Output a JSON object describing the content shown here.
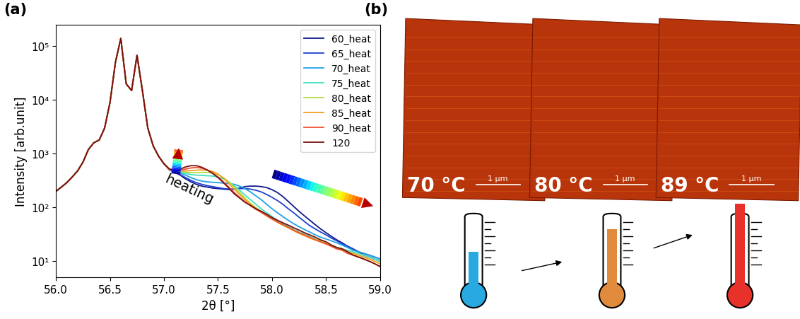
{
  "chart_data": {
    "type": "line",
    "log": "y",
    "grid": false,
    "legend": "upper right",
    "line_style": "solid",
    "xlabel": "2θ [°]",
    "ylabel": "Intensity [arb.unit]",
    "annotations": [
      "heating"
    ],
    "xlim": [
      56.0,
      59.0
    ],
    "xticks": [
      {
        "value": 56.0,
        "label": "56.0"
      },
      {
        "value": 56.5,
        "label": "56.5"
      },
      {
        "value": 57.0,
        "label": "57.0"
      },
      {
        "value": 57.5,
        "label": "57.5"
      },
      {
        "value": 58.0,
        "label": "58.0"
      },
      {
        "value": 58.5,
        "label": "58.5"
      },
      {
        "value": 59.0,
        "label": "59.0"
      }
    ],
    "ylim": [
      5,
      250000
    ],
    "yticks": [
      {
        "value": 10,
        "label": "10¹"
      },
      {
        "value": 100,
        "label": "10²"
      },
      {
        "value": 1000,
        "label": "10³"
      },
      {
        "value": 10000,
        "label": "10⁴"
      },
      {
        "value": 100000,
        "label": "10⁵"
      }
    ],
    "x": [
      56.0,
      56.05,
      56.1,
      56.15,
      56.2,
      56.25,
      56.3,
      56.35,
      56.4,
      56.45,
      56.5,
      56.55,
      56.6,
      56.65,
      56.7,
      56.75,
      56.8,
      56.85,
      56.9,
      56.95,
      57.0,
      57.05,
      57.1,
      57.15,
      57.2,
      57.25,
      57.3,
      57.35,
      57.4,
      57.45,
      57.5,
      57.55,
      57.6,
      57.65,
      57.7,
      57.75,
      57.8,
      57.85,
      57.9,
      57.95,
      58.0,
      58.05,
      58.1,
      58.15,
      58.2,
      58.25,
      58.3,
      58.35,
      58.4,
      58.45,
      58.5,
      58.55,
      58.6,
      58.65,
      58.7,
      58.75,
      58.8,
      58.85,
      58.9,
      58.95,
      59.0
    ],
    "series": [
      {
        "name": "60_heat",
        "color": "#0d1a8c",
        "values": [
          200,
          240,
          290,
          370,
          480,
          700,
          1200,
          1600,
          1800,
          3000,
          9000,
          50000,
          140000,
          20000,
          15000,
          68000,
          15000,
          3000,
          1400,
          900,
          650,
          500,
          450,
          400,
          340,
          300,
          270,
          250,
          240,
          230,
          225,
          220,
          215,
          220,
          230,
          245,
          250,
          250,
          245,
          235,
          215,
          190,
          160,
          130,
          105,
          85,
          70,
          58,
          48,
          40,
          34,
          29,
          25,
          22,
          19,
          17,
          15,
          13,
          12,
          11,
          10
        ]
      },
      {
        "name": "65_heat",
        "color": "#2040d0",
        "values": [
          200,
          240,
          290,
          370,
          480,
          700,
          1200,
          1600,
          1800,
          3000,
          9000,
          50000,
          140000,
          20000,
          15000,
          68000,
          15000,
          3000,
          1400,
          900,
          650,
          500,
          460,
          410,
          360,
          320,
          290,
          270,
          255,
          245,
          235,
          225,
          220,
          220,
          225,
          225,
          220,
          210,
          195,
          175,
          155,
          135,
          115,
          95,
          80,
          66,
          55,
          46,
          40,
          35,
          31,
          27,
          24,
          21,
          19,
          17,
          15,
          14,
          13,
          12,
          11
        ]
      },
      {
        "name": "70_heat",
        "color": "#20a0e8",
        "values": [
          200,
          240,
          290,
          370,
          480,
          700,
          1200,
          1600,
          1800,
          3000,
          9000,
          50000,
          140000,
          20000,
          15000,
          68000,
          15000,
          3000,
          1400,
          900,
          650,
          510,
          480,
          440,
          400,
          360,
          330,
          310,
          300,
          295,
          290,
          285,
          280,
          270,
          250,
          225,
          195,
          165,
          140,
          115,
          95,
          80,
          68,
          58,
          50,
          44,
          39,
          35,
          31,
          28,
          26,
          24,
          22,
          20,
          18,
          16,
          15,
          14,
          13,
          12,
          11
        ]
      },
      {
        "name": "75_heat",
        "color": "#40e0c0",
        "values": [
          200,
          240,
          290,
          370,
          480,
          700,
          1200,
          1600,
          1800,
          3000,
          9000,
          50000,
          140000,
          20000,
          15000,
          68000,
          15000,
          3000,
          1400,
          900,
          650,
          510,
          490,
          460,
          430,
          410,
          400,
          395,
          390,
          385,
          370,
          340,
          300,
          255,
          210,
          170,
          140,
          115,
          95,
          80,
          68,
          58,
          50,
          44,
          39,
          35,
          32,
          29,
          26,
          24,
          22,
          20,
          18,
          17,
          16,
          15,
          14,
          13,
          12,
          11,
          10
        ]
      },
      {
        "name": "80_heat",
        "color": "#b0e040",
        "values": [
          200,
          240,
          290,
          370,
          480,
          700,
          1200,
          1600,
          1800,
          3000,
          9000,
          50000,
          140000,
          20000,
          15000,
          68000,
          15000,
          3000,
          1400,
          900,
          650,
          510,
          490,
          470,
          455,
          445,
          445,
          450,
          450,
          440,
          410,
          360,
          300,
          240,
          190,
          150,
          120,
          100,
          85,
          72,
          62,
          54,
          47,
          42,
          38,
          34,
          31,
          28,
          26,
          24,
          22,
          20,
          18,
          17,
          15,
          14,
          13,
          12,
          11,
          10,
          9
        ]
      },
      {
        "name": "85_heat",
        "color": "#f0a020",
        "values": [
          200,
          240,
          290,
          370,
          480,
          700,
          1200,
          1600,
          1800,
          3000,
          9000,
          50000,
          140000,
          20000,
          15000,
          68000,
          15000,
          3000,
          1400,
          900,
          650,
          510,
          495,
          485,
          480,
          485,
          495,
          500,
          495,
          470,
          420,
          350,
          280,
          220,
          175,
          140,
          115,
          97,
          83,
          71,
          61,
          53,
          47,
          42,
          37,
          33,
          30,
          27,
          25,
          23,
          21,
          19,
          17,
          16,
          15,
          14,
          13,
          12,
          11,
          10,
          9
        ]
      },
      {
        "name": "90_heat",
        "color": "#f05030",
        "values": [
          200,
          240,
          290,
          370,
          480,
          700,
          1200,
          1600,
          1800,
          3000,
          9000,
          50000,
          140000,
          20000,
          15000,
          68000,
          15000,
          3000,
          1400,
          900,
          650,
          515,
          500,
          500,
          520,
          545,
          555,
          540,
          500,
          440,
          370,
          300,
          240,
          190,
          155,
          128,
          108,
          93,
          81,
          70,
          61,
          54,
          48,
          43,
          38,
          34,
          31,
          28,
          25,
          23,
          21,
          19,
          17,
          16,
          14,
          13,
          12,
          11,
          10,
          9,
          8
        ]
      },
      {
        "name": "120",
        "color": "#7a1010",
        "values": [
          200,
          240,
          290,
          370,
          480,
          700,
          1200,
          1600,
          1800,
          3000,
          9000,
          50000,
          140000,
          20000,
          15000,
          68000,
          15000,
          3000,
          1400,
          900,
          650,
          520,
          500,
          520,
          570,
          600,
          600,
          560,
          500,
          430,
          360,
          290,
          230,
          180,
          150,
          125,
          110,
          95,
          85,
          75,
          65,
          58,
          52,
          47,
          42,
          38,
          34,
          31,
          28,
          25,
          23,
          20,
          18,
          17,
          15,
          13,
          12,
          11,
          10,
          9,
          8
        ]
      }
    ]
  },
  "panel_labels": [
    "(a)",
    "(b)"
  ],
  "panel_b": {
    "images": [
      {
        "label": "70 °C",
        "scale_bar": "1 μm"
      },
      {
        "label": "80 °C",
        "scale_bar": "1 μm"
      },
      {
        "label": "89 °C",
        "scale_bar": "1 μm"
      }
    ]
  }
}
